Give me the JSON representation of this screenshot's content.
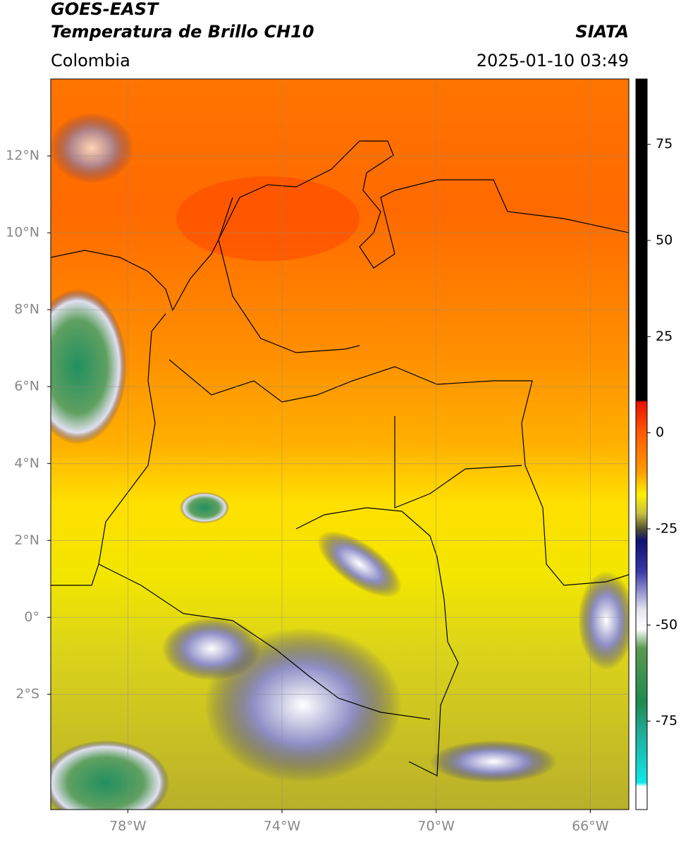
{
  "map": {
    "satellite": "GOES-EAST",
    "product": "Temperatura de Brillo CH10",
    "source": "SIATA",
    "region": "Colombia",
    "datetime": "2025-01-10 03:49",
    "lonlim": [
      -80,
      -65
    ],
    "latlim": [
      -5,
      14
    ],
    "grid": true,
    "lonticks": [
      {
        "value": -78,
        "label": "78°W"
      },
      {
        "value": -74,
        "label": "74°W"
      },
      {
        "value": -70,
        "label": "70°W"
      },
      {
        "value": -66,
        "label": "66°W"
      }
    ],
    "latticks": [
      {
        "value": 12,
        "label": "12°N"
      },
      {
        "value": 10,
        "label": "10°N"
      },
      {
        "value": 8,
        "label": "8°N"
      },
      {
        "value": 6,
        "label": "6°N"
      },
      {
        "value": 4,
        "label": "4°N"
      },
      {
        "value": 2,
        "label": "2°N"
      },
      {
        "value": 0,
        "label": "0°"
      },
      {
        "value": -2,
        "label": "2°S"
      }
    ]
  },
  "colorbar": {
    "lim": [
      -98,
      92
    ],
    "ticks": [
      75,
      50,
      25,
      0,
      -25,
      -50,
      -75
    ],
    "stops": [
      {
        "value": 92,
        "color": "#000000"
      },
      {
        "value": 8.5,
        "color": "#000000"
      },
      {
        "value": 8,
        "color": "#e81000"
      },
      {
        "value": 0,
        "color": "#ff5a00"
      },
      {
        "value": -10,
        "color": "#ff9a00"
      },
      {
        "value": -16,
        "color": "#fff000"
      },
      {
        "value": -21,
        "color": "#c8c040"
      },
      {
        "value": -25,
        "color": "#505030"
      },
      {
        "value": -28,
        "color": "#101070"
      },
      {
        "value": -36,
        "color": "#3838a8"
      },
      {
        "value": -46,
        "color": "#e4e4f0"
      },
      {
        "value": -51,
        "color": "#ffffff"
      },
      {
        "value": -56,
        "color": "#5a9a50"
      },
      {
        "value": -70,
        "color": "#208a50"
      },
      {
        "value": -77,
        "color": "#20a890"
      },
      {
        "value": -91,
        "color": "#10e8e8"
      },
      {
        "value": -92,
        "color": "#ffffff"
      },
      {
        "value": -98,
        "color": "#ffffff"
      }
    ]
  }
}
